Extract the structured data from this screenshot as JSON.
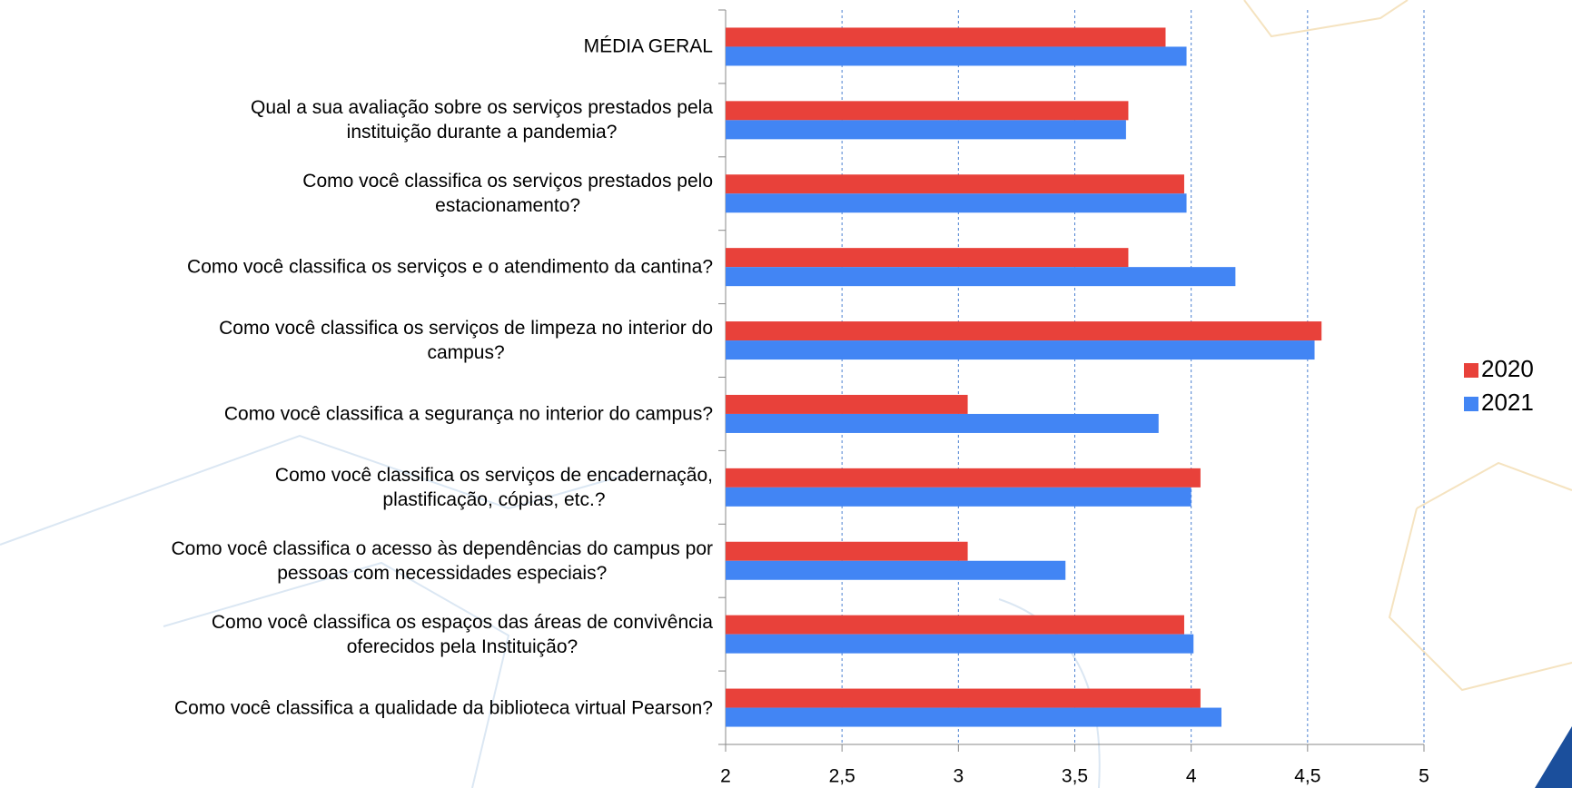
{
  "chart_data": {
    "type": "barh",
    "categories": [
      "MÉDIA GERAL",
      "Qual a sua avaliação sobre os serviços prestados pela\ninstituição durante a pandemia?",
      "Como você classifica os serviços prestados pelo\nestacionamento?",
      "Como você classifica os serviços e o atendimento da cantina?",
      "Como você classifica os serviços de limpeza no interior do\ncampus?",
      "Como você classifica a segurança no interior do campus?",
      "Como você classifica os serviços de encadernação,\nplastificação, cópias, etc.?",
      "Como você classifica o acesso às dependências do campus por\npessoas com necessidades especiais?",
      "Como você classifica os espaços das áreas de convivência\noferecidos pela Instituição?",
      "Como você classifica a qualidade da biblioteca virtual Pearson?"
    ],
    "series": [
      {
        "name": "2020",
        "color": "#e8413a",
        "values": [
          3.89,
          3.73,
          3.97,
          3.73,
          4.56,
          3.04,
          4.04,
          3.04,
          3.97,
          4.04
        ]
      },
      {
        "name": "2021",
        "color": "#4285f4",
        "values": [
          3.98,
          3.72,
          3.98,
          4.19,
          4.53,
          3.86,
          4.0,
          3.46,
          4.01,
          4.13
        ]
      }
    ],
    "xlim": [
      2,
      5
    ],
    "xticks": [
      2,
      {
        "value": 2.5,
        "label": "2,5"
      },
      3,
      {
        "value": 3.5,
        "label": "3,5"
      },
      4,
      {
        "value": 4.5,
        "label": "4,5"
      },
      5
    ],
    "grid": true,
    "legend": "right"
  }
}
